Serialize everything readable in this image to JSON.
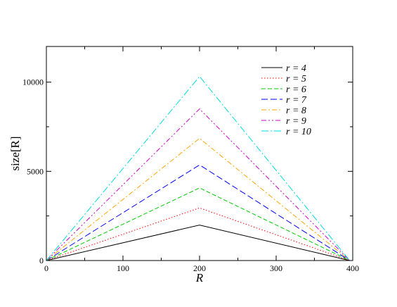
{
  "chart_data": {
    "type": "line",
    "xlabel": "R",
    "ylabel": "size[R]",
    "xlim": [
      0,
      400
    ],
    "ylim": [
      0,
      12000
    ],
    "xticks": [
      0,
      100,
      200,
      300,
      400
    ],
    "yticks": [
      0,
      5000,
      10000
    ],
    "grid": false,
    "legend_position": "top-right",
    "x": [
      0,
      200,
      396
    ],
    "series": [
      {
        "name": "r = 4",
        "r": "4",
        "values": [
          0,
          1990,
          0
        ],
        "color": "#000000",
        "dash": "solid"
      },
      {
        "name": "r = 5",
        "r": "5",
        "values": [
          0,
          2950,
          0
        ],
        "color": "#ff0000",
        "dash": "dotted"
      },
      {
        "name": "r = 6",
        "r": "6",
        "values": [
          0,
          4070,
          0
        ],
        "color": "#00cc00",
        "dash": "dashed"
      },
      {
        "name": "r = 7",
        "r": "7",
        "values": [
          0,
          5360,
          0
        ],
        "color": "#0000ff",
        "dash": "longdash"
      },
      {
        "name": "r = 8",
        "r": "8",
        "values": [
          0,
          6850,
          0
        ],
        "color": "#ffa500",
        "dash": "dashdot"
      },
      {
        "name": "r = 9",
        "r": "9",
        "values": [
          0,
          8500,
          0
        ],
        "color": "#cc00cc",
        "dash": "dashdotdot"
      },
      {
        "name": "r = 10",
        "r": "10",
        "values": [
          0,
          10320,
          0
        ],
        "color": "#00dddd",
        "dash": "longdashdot"
      }
    ]
  }
}
